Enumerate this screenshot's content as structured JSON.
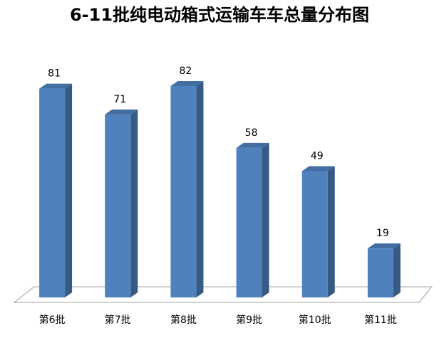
{
  "chart_data": {
    "type": "bar3d",
    "title": "6-11批纯电动箱式运输车车总量分布图",
    "categories": [
      "第6批",
      "第7批",
      "第8批",
      "第9批",
      "第10批",
      "第11批"
    ],
    "values": [
      81,
      71,
      82,
      58,
      49,
      19
    ],
    "color": "#4f81bd",
    "ylim": [
      0,
      90
    ]
  }
}
